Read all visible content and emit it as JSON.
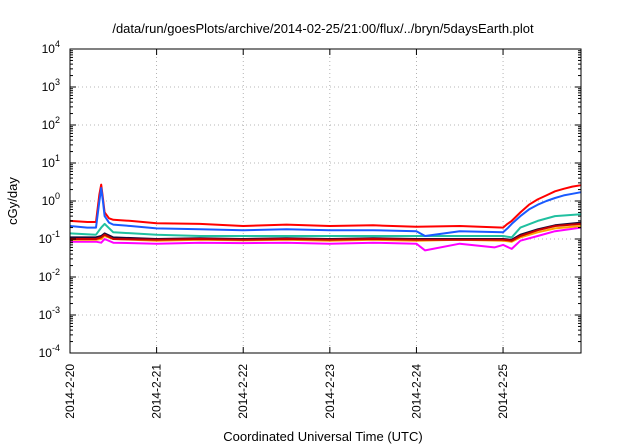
{
  "chart_data": {
    "type": "line",
    "title": "/data/run/goesPlots/archive/2014-02-25/21:00/flux/../bryn/5daysEarth.plot",
    "xlabel": "Coordinated Universal Time (UTC)",
    "ylabel": "cGy/day",
    "x_range_days": [
      0,
      5.9
    ],
    "y_scale": "log",
    "ylim": [
      0.0001,
      10000
    ],
    "y_ticks": [
      {
        "exp": "-4",
        "value": 0.0001
      },
      {
        "exp": "-3",
        "value": 0.001
      },
      {
        "exp": "-2",
        "value": 0.01
      },
      {
        "exp": "-1",
        "value": 0.1
      },
      {
        "exp": "0",
        "value": 1
      },
      {
        "exp": "1",
        "value": 10
      },
      {
        "exp": "2",
        "value": 100
      },
      {
        "exp": "3",
        "value": 1000
      },
      {
        "exp": "4",
        "value": 10000
      }
    ],
    "x_tick_labels": [
      "2014-2-20",
      "2014-2-21",
      "2014-2-22",
      "2014-2-23",
      "2014-2-24",
      "2014-2-25"
    ],
    "grid": true,
    "series": [
      {
        "color": "#ff00ff",
        "x": [
          0,
          0.3,
          0.36,
          0.4,
          0.5,
          1.0,
          1.5,
          2.0,
          2.5,
          3.0,
          3.5,
          4.0,
          4.1,
          4.5,
          4.9,
          5.0,
          5.1,
          5.2,
          5.4,
          5.6,
          5.9
        ],
        "y": [
          0.085,
          0.085,
          0.08,
          0.1,
          0.08,
          0.075,
          0.08,
          0.078,
          0.08,
          0.075,
          0.08,
          0.075,
          0.05,
          0.075,
          0.06,
          0.07,
          0.055,
          0.09,
          0.12,
          0.16,
          0.2
        ]
      },
      {
        "color": "#ffa500",
        "x": [
          0,
          0.3,
          0.36,
          0.4,
          0.5,
          1.0,
          1.5,
          2.0,
          2.5,
          3.0,
          3.5,
          4.0,
          4.5,
          5.0,
          5.1,
          5.2,
          5.4,
          5.6,
          5.9
        ],
        "y": [
          0.095,
          0.095,
          0.1,
          0.12,
          0.1,
          0.09,
          0.095,
          0.092,
          0.095,
          0.09,
          0.095,
          0.09,
          0.095,
          0.09,
          0.085,
          0.11,
          0.15,
          0.19,
          0.22
        ]
      },
      {
        "color": "#1a0a3a",
        "x": [
          0,
          0.3,
          0.36,
          0.4,
          0.5,
          1.0,
          1.5,
          2.0,
          2.5,
          3.0,
          3.5,
          4.0,
          4.5,
          5.0,
          5.1,
          5.2,
          5.4,
          5.6,
          5.9
        ],
        "y": [
          0.11,
          0.11,
          0.12,
          0.14,
          0.11,
          0.1,
          0.105,
          0.1,
          0.105,
          0.1,
          0.105,
          0.1,
          0.1,
          0.1,
          0.095,
          0.13,
          0.18,
          0.23,
          0.27
        ]
      },
      {
        "color": "#cc0000",
        "x": [
          0,
          0.3,
          0.36,
          0.4,
          0.5,
          1.0,
          1.5,
          2.0,
          2.5,
          3.0,
          3.5,
          4.0,
          4.5,
          5.0,
          5.1,
          5.2,
          5.4,
          5.6,
          5.9
        ],
        "y": [
          0.1,
          0.1,
          0.11,
          0.13,
          0.1,
          0.095,
          0.1,
          0.095,
          0.1,
          0.095,
          0.1,
          0.095,
          0.095,
          0.095,
          0.09,
          0.12,
          0.17,
          0.22,
          0.25
        ]
      },
      {
        "color": "#20c0a0",
        "x": [
          0,
          0.3,
          0.36,
          0.4,
          0.5,
          1.0,
          1.5,
          2.0,
          2.5,
          3.0,
          3.5,
          4.0,
          4.5,
          5.0,
          5.1,
          5.2,
          5.4,
          5.6,
          5.9
        ],
        "y": [
          0.14,
          0.13,
          0.2,
          0.25,
          0.15,
          0.13,
          0.12,
          0.12,
          0.12,
          0.12,
          0.12,
          0.12,
          0.12,
          0.12,
          0.11,
          0.2,
          0.3,
          0.4,
          0.45
        ]
      },
      {
        "color": "#ff0000",
        "x": [
          0,
          0.2,
          0.3,
          0.34,
          0.36,
          0.38,
          0.4,
          0.45,
          0.5,
          0.7,
          1.0,
          1.5,
          2.0,
          2.5,
          3.0,
          3.5,
          4.0,
          4.5,
          5.0,
          5.05,
          5.1,
          5.2,
          5.3,
          5.4,
          5.5,
          5.6,
          5.7,
          5.8,
          5.9
        ],
        "y": [
          0.3,
          0.28,
          0.28,
          1.5,
          2.7,
          1.2,
          0.5,
          0.35,
          0.32,
          0.3,
          0.26,
          0.25,
          0.22,
          0.24,
          0.22,
          0.23,
          0.21,
          0.22,
          0.2,
          0.25,
          0.3,
          0.5,
          0.8,
          1.1,
          1.4,
          1.8,
          2.1,
          2.4,
          2.6
        ]
      },
      {
        "color": "#1a5aff",
        "x": [
          0,
          0.2,
          0.3,
          0.34,
          0.36,
          0.38,
          0.4,
          0.45,
          0.5,
          0.7,
          1.0,
          1.5,
          2.0,
          2.5,
          3.0,
          3.5,
          4.0,
          4.1,
          4.5,
          5.0,
          5.05,
          5.1,
          5.2,
          5.3,
          5.4,
          5.5,
          5.6,
          5.7,
          5.8,
          5.9
        ],
        "y": [
          0.22,
          0.2,
          0.2,
          1.0,
          2.2,
          1.0,
          0.4,
          0.27,
          0.24,
          0.22,
          0.19,
          0.18,
          0.17,
          0.18,
          0.17,
          0.17,
          0.16,
          0.12,
          0.16,
          0.15,
          0.19,
          0.25,
          0.4,
          0.6,
          0.8,
          1.0,
          1.2,
          1.4,
          1.55,
          1.7
        ]
      }
    ]
  }
}
